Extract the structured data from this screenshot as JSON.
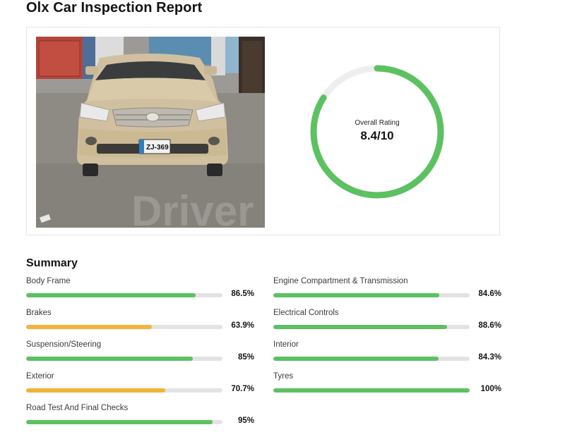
{
  "page_title": "Olx Car Inspection Report",
  "vehicle_photo": {
    "plate_text": "ZJ-369",
    "watermark": "Driver"
  },
  "overall_rating": {
    "label": "Overall Rating",
    "value": "8.4/10",
    "score": 8.4,
    "max": 10,
    "ring_color": "#5cc161",
    "track_color": "#eeeeee"
  },
  "summary": {
    "title": "Summary",
    "colors": {
      "good": "#5cc161",
      "warning": "#f2b43e",
      "track": "#e3e3e3"
    },
    "metrics": [
      {
        "label": "Body Frame",
        "value": "86.5%",
        "percent": 86.5,
        "status": "good"
      },
      {
        "label": "Engine Compartment & Transmission",
        "value": "84.6%",
        "percent": 84.6,
        "status": "good"
      },
      {
        "label": "Brakes",
        "value": "63.9%",
        "percent": 63.9,
        "status": "warning"
      },
      {
        "label": "Electrical Controls",
        "value": "88.6%",
        "percent": 88.6,
        "status": "good"
      },
      {
        "label": "Suspension/Steering",
        "value": "85%",
        "percent": 85,
        "status": "good"
      },
      {
        "label": "Interior",
        "value": "84.3%",
        "percent": 84.3,
        "status": "good"
      },
      {
        "label": "Exterior",
        "value": "70.7%",
        "percent": 70.7,
        "status": "warning"
      },
      {
        "label": "Tyres",
        "value": "100%",
        "percent": 100,
        "status": "good"
      },
      {
        "label": "Road Test And Final Checks",
        "value": "95%",
        "percent": 95,
        "status": "good"
      }
    ]
  }
}
